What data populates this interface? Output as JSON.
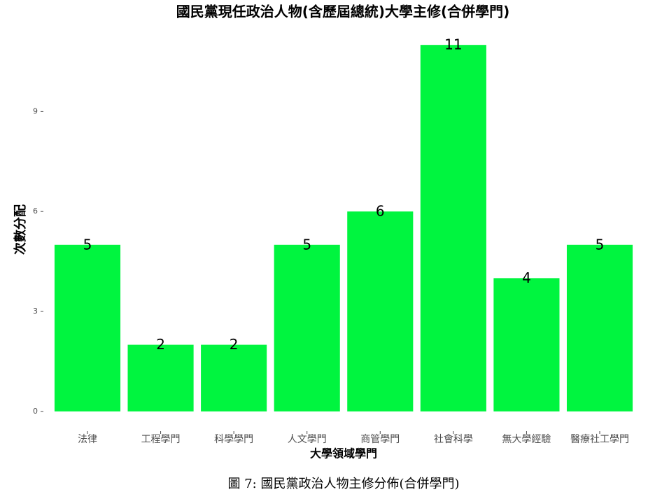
{
  "chart_data": {
    "type": "bar",
    "title": "國民黨現任政治人物(含歷屆總統)大學主修(合併學門)",
    "x_label": "大學領域學門",
    "y_label": "次數分配",
    "categories": [
      "法律",
      "工程學門",
      "科學學門",
      "人文學門",
      "商管學門",
      "社會科學",
      "無大學經驗",
      "醫療社工學門"
    ],
    "values": [
      5,
      2,
      2,
      5,
      6,
      11,
      4,
      5
    ],
    "color": "#00f53f",
    "ylim": [
      -0.55,
      11.55
    ],
    "yticks": [
      0,
      3,
      6,
      9
    ],
    "grid": false,
    "caption": "圖 7: 國民黨政治人物主修分佈(合併學門)"
  }
}
